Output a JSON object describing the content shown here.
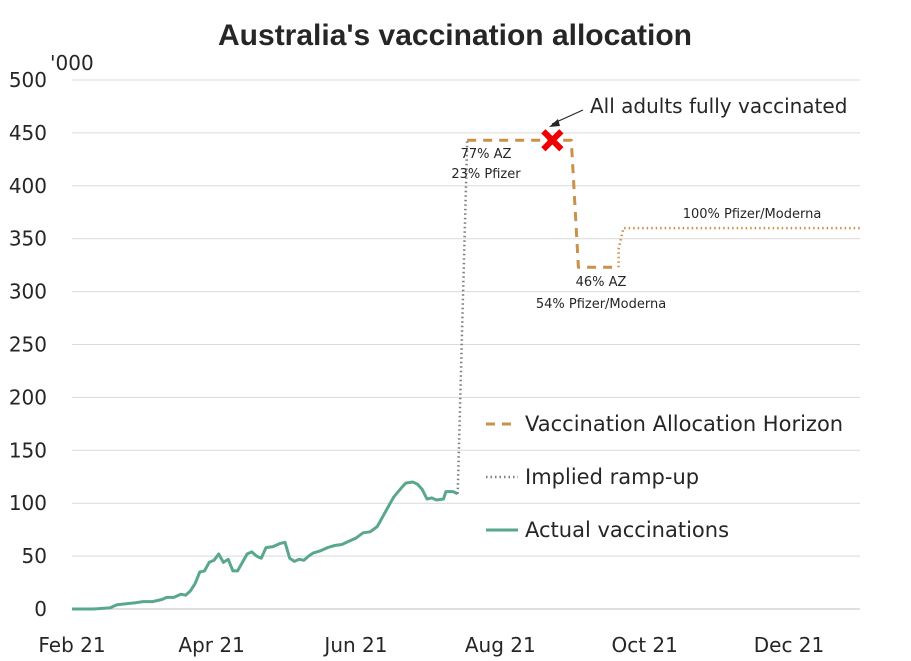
{
  "chart_data": {
    "type": "line",
    "title": "Australia's vaccination allocation",
    "ylabel": "",
    "y_unit": "'000",
    "xlabel": "",
    "ylim": [
      0,
      500
    ],
    "yticks": [
      "0",
      "50",
      "100",
      "150",
      "200",
      "250",
      "300",
      "350",
      "400",
      "450",
      "500"
    ],
    "xlim": [
      "2021-02-01",
      "2021-12-31"
    ],
    "xticks": [
      {
        "label": "Feb 21",
        "date": "2021-02-01"
      },
      {
        "label": "Apr 21",
        "date": "2021-04-01"
      },
      {
        "label": "Jun 21",
        "date": "2021-06-01"
      },
      {
        "label": "Aug 21",
        "date": "2021-08-01"
      },
      {
        "label": "Oct 21",
        "date": "2021-10-01"
      },
      {
        "label": "Dec 21",
        "date": "2021-12-01"
      }
    ],
    "grid": "horizontal",
    "legend_position": "right",
    "series": [
      {
        "name": "Actual vaccinations",
        "style": "solid",
        "color": "#5aa88a",
        "points": [
          [
            "2021-02-01",
            0
          ],
          [
            "2021-02-10",
            0
          ],
          [
            "2021-02-17",
            1
          ],
          [
            "2021-02-20",
            4
          ],
          [
            "2021-02-24",
            5
          ],
          [
            "2021-02-28",
            6
          ],
          [
            "2021-03-03",
            7
          ],
          [
            "2021-03-07",
            7
          ],
          [
            "2021-03-11",
            9
          ],
          [
            "2021-03-13",
            11
          ],
          [
            "2021-03-16",
            11
          ],
          [
            "2021-03-19",
            14
          ],
          [
            "2021-03-21",
            13
          ],
          [
            "2021-03-23",
            17
          ],
          [
            "2021-03-25",
            24
          ],
          [
            "2021-03-27",
            35
          ],
          [
            "2021-03-29",
            36
          ],
          [
            "2021-03-31",
            44
          ],
          [
            "2021-04-02",
            46
          ],
          [
            "2021-04-04",
            52
          ],
          [
            "2021-04-06",
            44
          ],
          [
            "2021-04-08",
            47
          ],
          [
            "2021-04-10",
            36
          ],
          [
            "2021-04-12",
            36
          ],
          [
            "2021-04-14",
            44
          ],
          [
            "2021-04-16",
            52
          ],
          [
            "2021-04-18",
            54
          ],
          [
            "2021-04-20",
            50
          ],
          [
            "2021-04-22",
            48
          ],
          [
            "2021-04-24",
            58
          ],
          [
            "2021-04-27",
            59
          ],
          [
            "2021-04-30",
            62
          ],
          [
            "2021-05-02",
            63
          ],
          [
            "2021-05-04",
            48
          ],
          [
            "2021-05-06",
            45
          ],
          [
            "2021-05-08",
            47
          ],
          [
            "2021-05-10",
            46
          ],
          [
            "2021-05-12",
            50
          ],
          [
            "2021-05-14",
            53
          ],
          [
            "2021-05-17",
            55
          ],
          [
            "2021-05-20",
            58
          ],
          [
            "2021-05-23",
            60
          ],
          [
            "2021-05-26",
            61
          ],
          [
            "2021-05-29",
            64
          ],
          [
            "2021-06-01",
            67
          ],
          [
            "2021-06-04",
            72
          ],
          [
            "2021-06-07",
            73
          ],
          [
            "2021-06-10",
            78
          ],
          [
            "2021-06-12",
            86
          ],
          [
            "2021-06-14",
            94
          ],
          [
            "2021-06-17",
            106
          ],
          [
            "2021-06-20",
            114
          ],
          [
            "2021-06-22",
            119
          ],
          [
            "2021-06-25",
            120
          ],
          [
            "2021-06-27",
            118
          ],
          [
            "2021-06-29",
            113
          ],
          [
            "2021-07-01",
            104
          ],
          [
            "2021-07-03",
            105
          ],
          [
            "2021-07-05",
            103
          ],
          [
            "2021-07-08",
            104
          ],
          [
            "2021-07-09",
            111
          ],
          [
            "2021-07-12",
            111
          ],
          [
            "2021-07-14",
            109
          ]
        ]
      },
      {
        "name": "Implied ramp-up",
        "style": "dotted",
        "color": "#7f7f7f",
        "points": [
          [
            "2021-07-14",
            109
          ],
          [
            "2021-07-18",
            443
          ]
        ]
      },
      {
        "name": "Vaccination Allocation Horizon",
        "style": "dashed",
        "color": "#c9914b",
        "points": [
          [
            "2021-07-18",
            443
          ],
          [
            "2021-08-31",
            443
          ],
          [
            "2021-09-03",
            323
          ],
          [
            "2021-09-20",
            323
          ]
        ]
      },
      {
        "name": "",
        "style": "dotted",
        "color": "#c9914b",
        "points": [
          [
            "2021-09-20",
            323
          ],
          [
            "2021-09-20",
            340
          ],
          [
            "2021-09-22",
            360
          ],
          [
            "2021-12-31",
            360
          ]
        ]
      }
    ],
    "marker": {
      "date": "2021-08-23",
      "value": 443,
      "color": "#ee0000"
    },
    "annotations": [
      {
        "lines": [
          "77% AZ",
          "23% Pfizer"
        ]
      },
      {
        "lines": [
          "46% AZ",
          "54% Pfizer/Moderna"
        ]
      },
      {
        "lines": [
          "100% Pfizer/Moderna"
        ]
      },
      {
        "lines": [
          "All adults fully vaccinated"
        ]
      }
    ],
    "legend": [
      {
        "label": "Vaccination Allocation Horizon",
        "style": "dashed",
        "color": "#c9914b"
      },
      {
        "label": "Implied ramp-up",
        "style": "dotted",
        "color": "#7f7f7f"
      },
      {
        "label": "Actual vaccinations",
        "style": "solid",
        "color": "#5aa88a"
      }
    ]
  }
}
